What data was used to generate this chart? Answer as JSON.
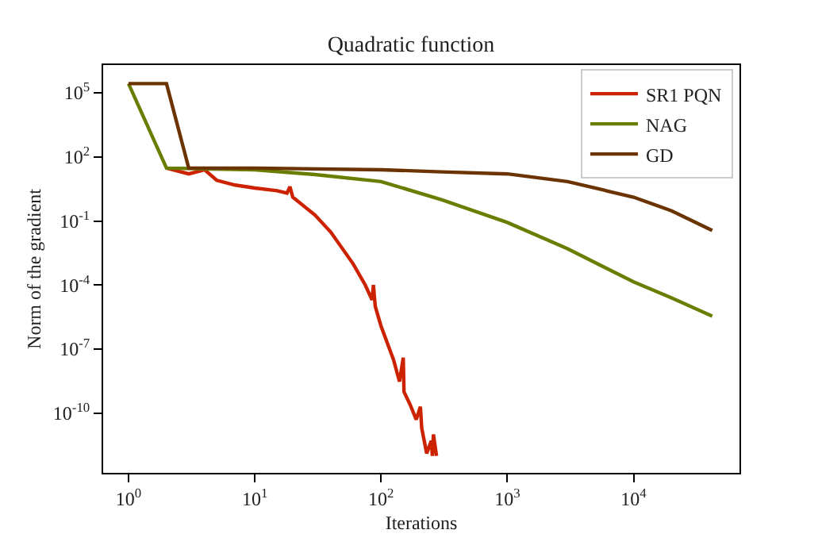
{
  "chart_data": {
    "type": "line",
    "title": "Quadratic function",
    "xlabel": "Iterations",
    "ylabel": "Norm of the gradient",
    "log": "xy",
    "legend": "top right",
    "marker": "none",
    "line_style": "solid",
    "xlim": [
      0.63,
      69000
    ],
    "ylim": [
      1.6e-13,
      2000000
    ],
    "xticks": [
      {
        "value": 1,
        "label": "10$^{0}$"
      },
      {
        "value": 10,
        "label": "10$^{1}$"
      },
      {
        "value": 100,
        "label": "10$^{2}$"
      },
      {
        "value": 1000,
        "label": "10$^{3}$"
      },
      {
        "value": 10000,
        "label": "10$^{4}$"
      }
    ],
    "yticks": [
      {
        "value": 1e-10,
        "label": "10$^{-10}$"
      },
      {
        "value": 1e-07,
        "label": "10$^{-7}$"
      },
      {
        "value": 0.0001,
        "label": "10$^{-4}$"
      },
      {
        "value": 0.1,
        "label": "10$^{-1}$"
      },
      {
        "value": 100,
        "label": "10$^{2}$"
      },
      {
        "value": 100000,
        "label": "10$^{5}$"
      }
    ],
    "series": [
      {
        "name": "SR1 PQN",
        "color": "#cc2200",
        "x": [
          2,
          3,
          4,
          5,
          7,
          10,
          15,
          18,
          19,
          20,
          30,
          40,
          60,
          75,
          85,
          87,
          90,
          100,
          126,
          140,
          150,
          152,
          170,
          190,
          205,
          210,
          230,
          250,
          255,
          260,
          275
        ],
        "values": [
          30,
          16,
          25,
          8,
          4.8,
          3.5,
          2.6,
          2.0,
          4,
          1.3,
          0.19,
          0.03,
          0.001,
          0.0001,
          2e-05,
          0.0001,
          1e-05,
          1.2e-06,
          3e-08,
          3e-09,
          4e-08,
          1e-09,
          2.5e-10,
          5e-11,
          2e-10,
          2e-11,
          1.3e-12,
          5e-12,
          1e-12,
          1e-11,
          1e-12
        ]
      },
      {
        "name": "NAG",
        "color": "#6b7d00",
        "x": [
          1,
          2,
          10,
          30,
          100,
          300,
          1000,
          3000,
          10000,
          20000,
          42000
        ],
        "values": [
          270000,
          30,
          25,
          15,
          7,
          1,
          0.085,
          0.005,
          0.00014,
          2.5e-05,
          3.5e-06
        ]
      },
      {
        "name": "GD",
        "color": "#6b3300",
        "x": [
          1,
          2,
          3,
          10,
          100,
          300,
          1000,
          3000,
          10000,
          20000,
          42000
        ],
        "values": [
          270000,
          270000,
          30,
          30,
          25,
          20,
          16,
          7,
          1.3,
          0.3,
          0.036
        ]
      }
    ]
  }
}
